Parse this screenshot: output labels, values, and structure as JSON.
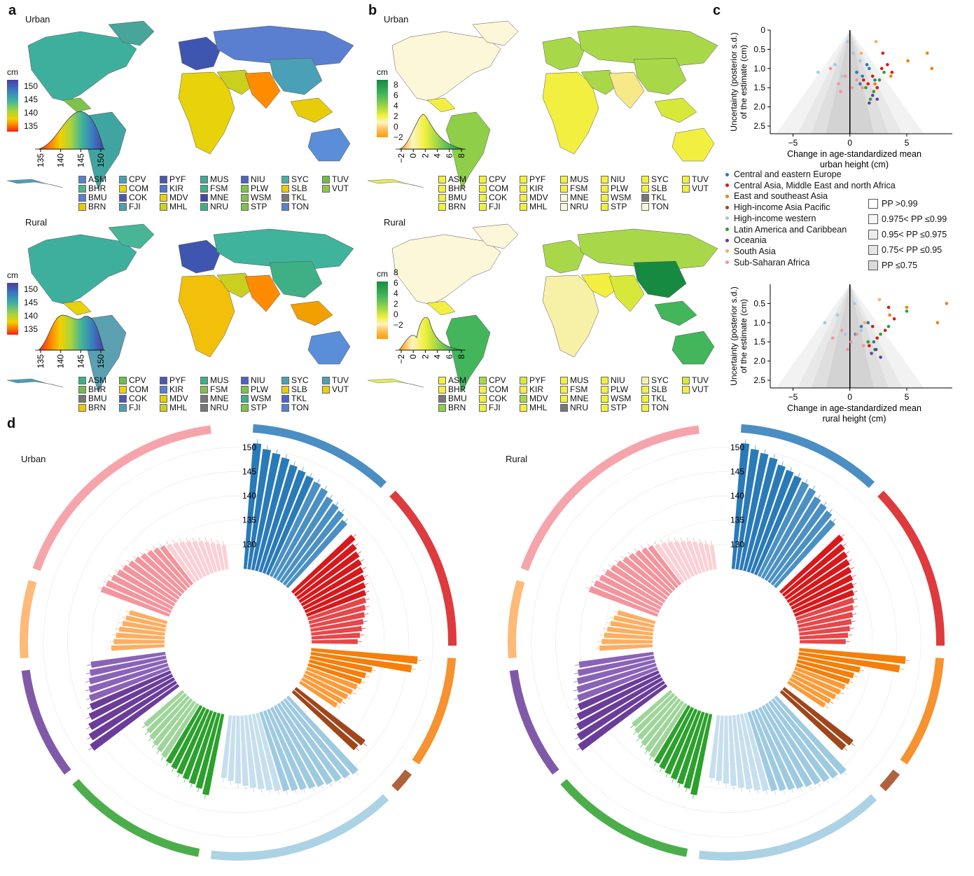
{
  "panels": {
    "a": {
      "letter": "a",
      "urban": "Urban",
      "rural": "Rural",
      "unit": "cm",
      "ticks": [
        "150",
        "145",
        "140",
        "135"
      ],
      "kde_ticks": [
        "135",
        "140",
        "145",
        "150"
      ]
    },
    "b": {
      "letter": "b",
      "urban": "Urban",
      "rural": "Rural",
      "unit": "cm",
      "ticks": [
        "8",
        "6",
        "4",
        "2",
        "0",
        "−2"
      ],
      "kde_ticks": [
        "−2",
        "0",
        "2",
        "4",
        "6",
        "8"
      ]
    },
    "c": {
      "letter": "c",
      "ylabel_1": "Uncertainty (posterior s.d.)",
      "ylabel_2": "of the estimate (cm)",
      "xlabel_urban_1": "Change in age-standardized mean",
      "xlabel_urban_2": "urban height (cm)",
      "xlabel_rural_1": "Change in age-standardized mean",
      "xlabel_rural_2": "rural height (cm)"
    },
    "d": {
      "letter": "d",
      "urban": "Urban",
      "rural": "Rural",
      "ticks": [
        "150",
        "145",
        "140",
        "135",
        "130"
      ]
    }
  },
  "countries": [
    "ASM",
    "CPV",
    "PYF",
    "MUS",
    "NIU",
    "SYC",
    "TUV",
    "BHR",
    "COM",
    "KIR",
    "FSM",
    "PLW",
    "SLB",
    "VUT",
    "BMU",
    "COK",
    "MDV",
    "MNE",
    "WSM",
    "TKL",
    "",
    "BRN",
    "FJI",
    "MHL",
    "NRU",
    "STP",
    "TON",
    ""
  ],
  "swatches": {
    "a_urban": [
      "#5a7fd0",
      "#4aa0b6",
      "#4b57b0",
      "#47a59a",
      "#4a64c8",
      "#4ab0a3",
      "#6cbf4d",
      "#50b38a",
      "#e8d20a",
      "#4a7ac8",
      "#3faf86",
      "#7ec24b",
      "#e8cc0a",
      "#8ec548",
      "#5a7fd0",
      "#4b57b0",
      "#e8d20a",
      "#3f48a8",
      "#7ec24b",
      "#777777",
      "",
      "#ecc80a",
      "#4aa0b6",
      "#c9d020",
      "#3faf86",
      "#7ec24b",
      "#5a7fd0",
      ""
    ],
    "a_rural": [
      "#3faf86",
      "#6cbf4d",
      "#4b57b0",
      "#3faf86",
      "#4a64c8",
      "#4aa0b6",
      "#4aa0b6",
      "#6cbf4d",
      "#e8d20a",
      "#5a7fd0",
      "#7ec24b",
      "#7ec24b",
      "#e8cc0a",
      "#e8d20a",
      "#777777",
      "#4b57b0",
      "#e8cc0a",
      "#777777",
      "#3faf86",
      "#4a64c8",
      "",
      "#ecc80a",
      "#4aa0b6",
      "#c9d020",
      "#777777",
      "#7ec24b",
      "#5a7fd0",
      ""
    ],
    "b_urban": [
      "#f2ef40",
      "#f2ef40",
      "#f2ef40",
      "#f2ef40",
      "#f2ef40",
      "#f2ef40",
      "#f2ef40",
      "#f2ef40",
      "#f2ef40",
      "#f2ef40",
      "#f2ef40",
      "#f2ef40",
      "#f2ef40",
      "#f2ef40",
      "#f2ef40",
      "#f2ef40",
      "#f2ef40",
      "#fbf7d8",
      "#f2ef40",
      "#777777",
      "",
      "#f2ef40",
      "#f2ef40",
      "#f2ef40",
      "#fbf7d8",
      "#f2ef40",
      "#fbf7d8",
      ""
    ],
    "b_rural": [
      "#f2ef40",
      "#a8d84a",
      "#d8e83a",
      "#f2ef40",
      "#f2ef40",
      "#f7f1a8",
      "#d8e83a",
      "#f2ef40",
      "#f2ef40",
      "#f2ef40",
      "#f2ef40",
      "#f2ef40",
      "#f2ef40",
      "#f2ef40",
      "#777777",
      "#f2ef40",
      "#a8d84a",
      "#f2ef40",
      "#f2ef40",
      "#f2ef40",
      "",
      "#8fce48",
      "#f2ef40",
      "#f2ef40",
      "#777777",
      "#f2ef40",
      "#f2ef40",
      ""
    ]
  },
  "legend_regions": [
    "Central and eastern Europe",
    "Central Asia, Middle East and north Africa",
    "East and southeast Asia",
    "High-income Asia Pacific",
    "High-income western",
    "Latin America and Caribbean",
    "Oceania",
    "South Asia",
    "Sub-Saharan Africa"
  ],
  "region_colors": [
    "#2a7ab8",
    "#d7191c",
    "#f57f0a",
    "#a0461b",
    "#9ecae1",
    "#2ca02c",
    "#6a3d9a",
    "#fdae61",
    "#f4949c"
  ],
  "pp_legend": [
    "PP >0.99",
    "0.975< PP  ≤0.99",
    "0.95< PP  ≤0.975",
    "0.75< PP  ≤0.95",
    "PP  ≤0.75"
  ],
  "chart_data": [
    {
      "type": "scatter",
      "title": "",
      "xlabel": "Change in age-standardized mean urban height (cm)",
      "ylabel": "Uncertainty (posterior s.d.) of the estimate (cm)",
      "xlim": [
        -7,
        9
      ],
      "ylim": [
        2.7,
        0
      ],
      "xticks": [
        -5,
        0,
        5
      ],
      "yticks": [
        0,
        0.5,
        1.0,
        1.5,
        2.0,
        2.5
      ],
      "series": [
        {
          "name": "Central and eastern Europe",
          "x": [
            0.6,
            1.1,
            1.7,
            2.2,
            0.9,
            1.5
          ],
          "y": [
            1.1,
            1.2,
            1.0,
            1.3,
            1.4,
            0.9
          ]
        },
        {
          "name": "Central Asia, Middle East and north Africa",
          "x": [
            2.0,
            2.8,
            3.3,
            1.6,
            3.7,
            2.4,
            2.9,
            1.2
          ],
          "y": [
            1.2,
            1.0,
            0.9,
            1.4,
            1.1,
            1.5,
            0.6,
            1.3
          ]
        },
        {
          "name": "East and southeast Asia",
          "x": [
            6.8,
            7.2,
            5.1,
            3.6,
            2.2
          ],
          "y": [
            0.6,
            1.0,
            0.8,
            1.2,
            1.4
          ]
        },
        {
          "name": "High-income western",
          "x": [
            -2.8,
            -1.3,
            -0.7,
            0.3,
            -0.2,
            0.9
          ],
          "y": [
            1.1,
            0.9,
            1.2,
            0.6,
            0.3,
            0.8
          ]
        },
        {
          "name": "Latin America and Caribbean",
          "x": [
            1.4,
            2.6,
            3.0,
            1.8,
            2.1
          ],
          "y": [
            1.5,
            1.3,
            1.1,
            1.8,
            1.6
          ]
        },
        {
          "name": "Oceania",
          "x": [
            2.0,
            2.4,
            1.7
          ],
          "y": [
            1.7,
            1.8,
            1.9
          ]
        },
        {
          "name": "South Asia",
          "x": [
            1.0,
            2.3
          ],
          "y": [
            0.6,
            0.3
          ]
        },
        {
          "name": "Sub-Saharan Africa",
          "x": [
            -1.7,
            -1.0,
            -0.4,
            0.2,
            0.6,
            -0.8,
            1.1
          ],
          "y": [
            1.0,
            1.4,
            1.2,
            1.5,
            1.3,
            1.6,
            1.5
          ]
        }
      ]
    },
    {
      "type": "scatter",
      "title": "",
      "xlabel": "Change in age-standardized mean rural height (cm)",
      "ylabel": "Uncertainty (posterior s.d.) of the estimate (cm)",
      "xlim": [
        -7,
        9
      ],
      "ylim": [
        2.7,
        0
      ],
      "xticks": [
        -5,
        0,
        5
      ],
      "yticks": [
        0.5,
        1.0,
        1.5,
        2.0,
        2.5
      ],
      "series": [
        {
          "name": "Central and eastern Europe",
          "x": [
            0.5,
            1.0,
            1.6,
            2.1
          ],
          "y": [
            1.3,
            1.1,
            1.0,
            1.5
          ]
        },
        {
          "name": "Central Asia, Middle East and north Africa",
          "x": [
            2.4,
            3.1,
            3.9,
            2.0,
            1.7,
            3.4
          ],
          "y": [
            1.4,
            1.2,
            0.9,
            1.1,
            1.6,
            0.6
          ]
        },
        {
          "name": "East and southeast Asia",
          "x": [
            8.5,
            7.7,
            5.0,
            3.5
          ],
          "y": [
            0.5,
            1.0,
            0.6,
            0.8
          ]
        },
        {
          "name": "High-income western",
          "x": [
            -2.2,
            -1.1,
            0.4,
            -0.4,
            1.0
          ],
          "y": [
            1.0,
            0.8,
            0.5,
            1.3,
            1.2
          ]
        },
        {
          "name": "Latin America and Caribbean",
          "x": [
            1.6,
            2.7,
            3.4,
            2.2,
            5.0
          ],
          "y": [
            1.5,
            1.3,
            1.1,
            1.7,
            0.7
          ]
        },
        {
          "name": "Oceania",
          "x": [
            2.3,
            2.7,
            1.9
          ],
          "y": [
            1.7,
            1.9,
            1.8
          ]
        },
        {
          "name": "South Asia",
          "x": [
            1.3,
            2.6
          ],
          "y": [
            1.0,
            0.4
          ]
        },
        {
          "name": "Sub-Saharan Africa",
          "x": [
            -1.5,
            -0.7,
            0.1,
            0.6,
            1.2,
            -0.2
          ],
          "y": [
            1.4,
            1.2,
            1.5,
            1.3,
            1.6,
            1.7
          ]
        }
      ]
    },
    {
      "type": "bar",
      "title": "",
      "polar": true,
      "ylim": [
        125,
        152
      ],
      "yticks": [
        150,
        145,
        140,
        135,
        130
      ],
      "series": [
        {
          "name": "Central and eastern Europe",
          "values": [
            151,
            150,
            149.5,
            149,
            148,
            147.5,
            147,
            146.5,
            146,
            145,
            144.5,
            144,
            143
          ]
        },
        {
          "name": "Central Asia, Middle East and north Africa",
          "values": [
            142,
            141,
            140.5,
            140,
            139.5,
            139,
            138.5,
            138,
            137.5,
            137,
            136.5,
            136,
            135.5,
            135,
            134.5
          ]
        },
        {
          "name": "East and southeast Asia",
          "values": [
            147,
            146,
            138,
            137,
            136.5,
            136,
            135.5,
            135,
            134.5,
            134
          ]
        },
        {
          "name": "High-income Asia Pacific",
          "values": [
            143,
            142.5
          ]
        },
        {
          "name": "High-income western",
          "values": [
            146,
            145.5,
            145,
            144.5,
            144,
            143.5,
            143,
            142.5,
            142,
            141.5,
            141,
            140.5,
            140,
            139.5,
            139,
            138.5,
            138
          ]
        },
        {
          "name": "Latin America and Caribbean",
          "values": [
            142,
            141,
            140.5,
            140,
            139.5,
            139,
            138.5,
            138,
            137.5,
            137,
            136.5,
            136,
            135.5
          ]
        },
        {
          "name": "Oceania",
          "values": [
            147,
            146,
            145,
            144,
            143,
            142.5,
            142,
            141.5,
            141,
            140.5
          ]
        },
        {
          "name": "South Asia",
          "values": [
            136,
            135.5,
            135,
            134.5,
            134,
            133.5,
            133
          ]
        },
        {
          "name": "Sub-Saharan Africa",
          "values": [
            140,
            139.5,
            139,
            138.5,
            138,
            137.5,
            137,
            136.5,
            136,
            135.5,
            135,
            134.5,
            134,
            133.5,
            133,
            132.5,
            132,
            131.5,
            131,
            130.5,
            130
          ]
        }
      ]
    }
  ]
}
